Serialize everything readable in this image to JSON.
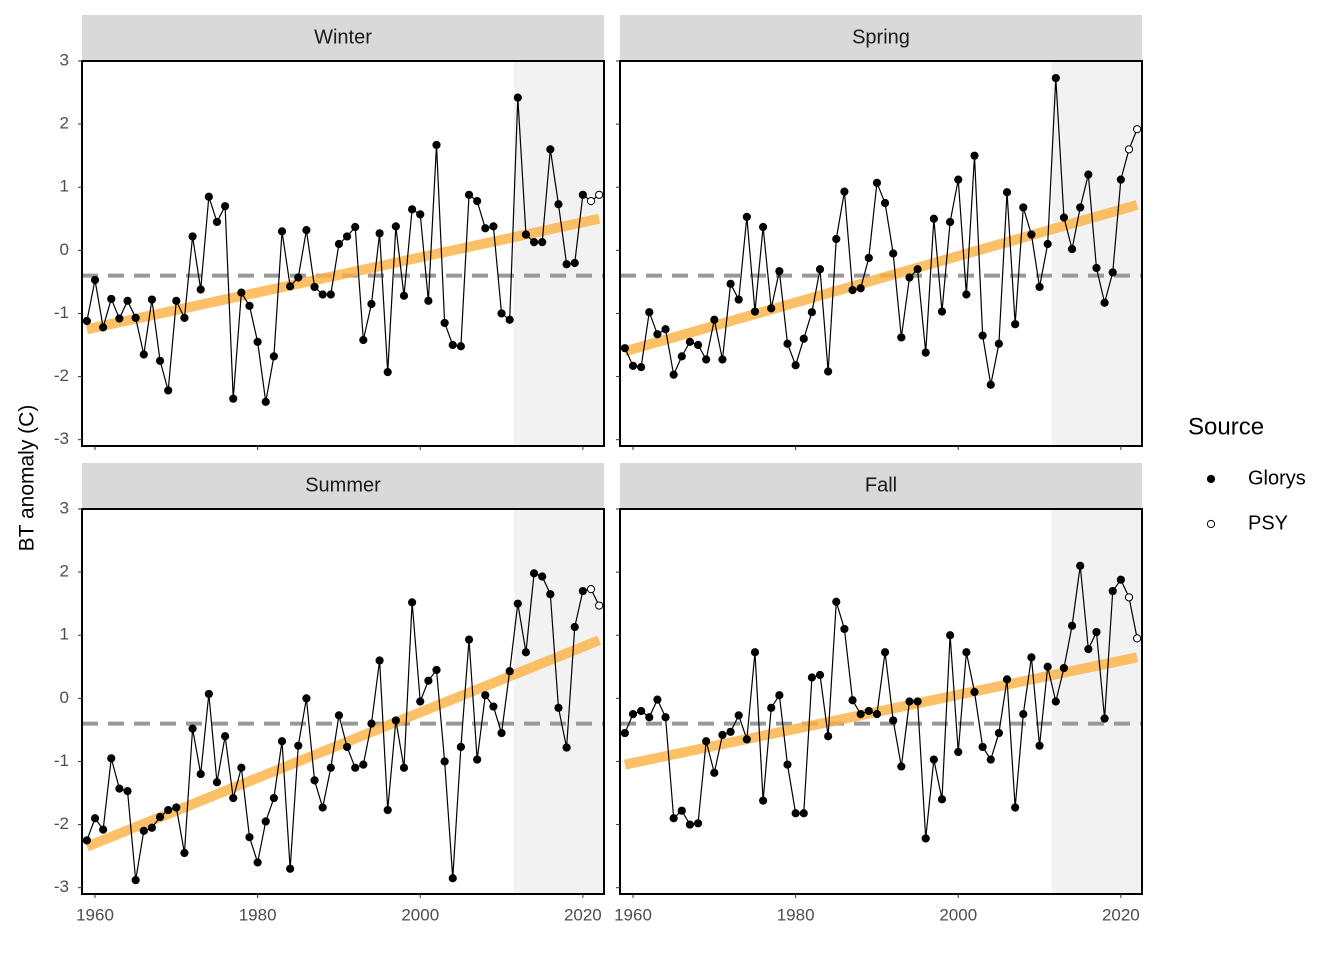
{
  "chart_data": [
    {
      "type": "line",
      "title": "Winter",
      "x": [
        1959,
        1960,
        1961,
        1962,
        1963,
        1964,
        1965,
        1966,
        1967,
        1968,
        1969,
        1970,
        1971,
        1972,
        1973,
        1974,
        1975,
        1976,
        1977,
        1978,
        1979,
        1980,
        1981,
        1982,
        1983,
        1984,
        1985,
        1986,
        1987,
        1988,
        1989,
        1990,
        1991,
        1992,
        1993,
        1994,
        1995,
        1996,
        1997,
        1998,
        1999,
        2000,
        2001,
        2002,
        2003,
        2004,
        2005,
        2006,
        2007,
        2008,
        2009,
        2010,
        2011,
        2012,
        2013,
        2014,
        2015,
        2016,
        2017,
        2018,
        2019,
        2020
      ],
      "series": [
        {
          "name": "Glorys",
          "color": "#000000",
          "values": [
            -1.12,
            -0.47,
            -1.22,
            -0.77,
            -1.08,
            -0.8,
            -1.07,
            -1.65,
            -0.78,
            -1.75,
            -2.22,
            -0.8,
            -1.07,
            0.22,
            -0.62,
            0.85,
            0.45,
            0.7,
            -2.35,
            -0.67,
            -0.88,
            -1.45,
            -2.4,
            -1.68,
            0.3,
            -0.57,
            -0.43,
            0.32,
            -0.58,
            -0.7,
            -0.7,
            0.1,
            0.22,
            0.37,
            -1.42,
            -0.85,
            0.27,
            -1.93,
            0.38,
            -0.72,
            0.65,
            0.57,
            -0.8,
            1.67,
            -1.15,
            -1.5,
            -1.52,
            0.88,
            0.78,
            0.35,
            0.38,
            -1.0,
            -1.1,
            2.42,
            0.25,
            0.13,
            0.13,
            1.6,
            0.73,
            -0.22,
            -0.2,
            0.88
          ]
        },
        {
          "name": "PSY",
          "color": "#ffffff",
          "x": [
            2021,
            2022
          ],
          "values": [
            0.78,
            0.88
          ]
        }
      ],
      "trend": {
        "x": [
          1959,
          2022
        ],
        "values": [
          -1.25,
          0.5
        ]
      }
    },
    {
      "type": "line",
      "title": "Spring",
      "x": [
        1959,
        1960,
        1961,
        1962,
        1963,
        1964,
        1965,
        1966,
        1967,
        1968,
        1969,
        1970,
        1971,
        1972,
        1973,
        1974,
        1975,
        1976,
        1977,
        1978,
        1979,
        1980,
        1981,
        1982,
        1983,
        1984,
        1985,
        1986,
        1987,
        1988,
        1989,
        1990,
        1991,
        1992,
        1993,
        1994,
        1995,
        1996,
        1997,
        1998,
        1999,
        2000,
        2001,
        2002,
        2003,
        2004,
        2005,
        2006,
        2007,
        2008,
        2009,
        2010,
        2011,
        2012,
        2013,
        2014,
        2015,
        2016,
        2017,
        2018,
        2019,
        2020
      ],
      "series": [
        {
          "name": "Glorys",
          "color": "#000000",
          "values": [
            -1.55,
            -1.83,
            -1.85,
            -0.98,
            -1.33,
            -1.25,
            -1.97,
            -1.68,
            -1.45,
            -1.5,
            -1.73,
            -1.1,
            -1.73,
            -0.53,
            -0.78,
            0.53,
            -0.97,
            0.37,
            -0.92,
            -0.33,
            -1.48,
            -1.82,
            -1.4,
            -0.98,
            -0.3,
            -1.92,
            0.18,
            0.93,
            -0.63,
            -0.6,
            -0.12,
            1.07,
            0.75,
            -0.05,
            -1.38,
            -0.43,
            -0.3,
            -1.62,
            0.5,
            -0.97,
            0.45,
            1.12,
            -0.7,
            1.5,
            -1.35,
            -2.13,
            -1.48,
            0.92,
            -1.17,
            0.68,
            0.25,
            -0.58,
            0.1,
            2.73,
            0.52,
            0.02,
            0.68,
            1.2,
            -0.28,
            -0.83,
            -0.35,
            1.12
          ]
        },
        {
          "name": "PSY",
          "color": "#ffffff",
          "x": [
            2021,
            2022
          ],
          "values": [
            1.6,
            1.92
          ]
        }
      ],
      "trend": {
        "x": [
          1959,
          2022
        ],
        "values": [
          -1.6,
          0.72
        ]
      }
    },
    {
      "type": "line",
      "title": "Summer",
      "x": [
        1959,
        1960,
        1961,
        1962,
        1963,
        1964,
        1965,
        1966,
        1967,
        1968,
        1969,
        1970,
        1971,
        1972,
        1973,
        1974,
        1975,
        1976,
        1977,
        1978,
        1979,
        1980,
        1981,
        1982,
        1983,
        1984,
        1985,
        1986,
        1987,
        1988,
        1989,
        1990,
        1991,
        1992,
        1993,
        1994,
        1995,
        1996,
        1997,
        1998,
        1999,
        2000,
        2001,
        2002,
        2003,
        2004,
        2005,
        2006,
        2007,
        2008,
        2009,
        2010,
        2011,
        2012,
        2013,
        2014,
        2015,
        2016,
        2017,
        2018,
        2019,
        2020
      ],
      "series": [
        {
          "name": "Glorys",
          "color": "#000000",
          "values": [
            -2.25,
            -1.9,
            -2.08,
            -0.95,
            -1.43,
            -1.47,
            -2.88,
            -2.1,
            -2.05,
            -1.88,
            -1.77,
            -1.73,
            -2.45,
            -0.48,
            -1.2,
            0.07,
            -1.33,
            -0.6,
            -1.58,
            -1.1,
            -2.2,
            -2.6,
            -1.95,
            -1.58,
            -0.68,
            -2.7,
            -0.75,
            0.0,
            -1.3,
            -1.73,
            -1.1,
            -0.27,
            -0.77,
            -1.1,
            -1.05,
            -0.4,
            0.6,
            -1.77,
            -0.35,
            -1.1,
            1.52,
            -0.05,
            0.28,
            0.45,
            -1.0,
            -2.85,
            -0.77,
            0.93,
            -0.97,
            0.05,
            -0.13,
            -0.55,
            0.43,
            1.5,
            0.73,
            1.98,
            1.93,
            1.65,
            -0.15,
            -0.78,
            1.13,
            1.7
          ]
        },
        {
          "name": "PSY",
          "color": "#ffffff",
          "x": [
            2021,
            2022
          ],
          "values": [
            1.73,
            1.47
          ]
        }
      ],
      "trend": {
        "x": [
          1959,
          2022
        ],
        "values": [
          -2.35,
          0.92
        ]
      }
    },
    {
      "type": "line",
      "title": "Fall",
      "x": [
        1959,
        1960,
        1961,
        1962,
        1963,
        1964,
        1965,
        1966,
        1967,
        1968,
        1969,
        1970,
        1971,
        1972,
        1973,
        1974,
        1975,
        1976,
        1977,
        1978,
        1979,
        1980,
        1981,
        1982,
        1983,
        1984,
        1985,
        1986,
        1987,
        1988,
        1989,
        1990,
        1991,
        1992,
        1993,
        1994,
        1995,
        1996,
        1997,
        1998,
        1999,
        2000,
        2001,
        2002,
        2003,
        2004,
        2005,
        2006,
        2007,
        2008,
        2009,
        2010,
        2011,
        2012,
        2013,
        2014,
        2015,
        2016,
        2017,
        2018,
        2019,
        2020
      ],
      "series": [
        {
          "name": "Glorys",
          "color": "#000000",
          "values": [
            -0.55,
            -0.25,
            -0.2,
            -0.3,
            -0.02,
            -0.3,
            -1.9,
            -1.78,
            -2.0,
            -1.98,
            -0.68,
            -1.18,
            -0.58,
            -0.53,
            -0.27,
            -0.65,
            0.73,
            -1.62,
            -0.15,
            0.05,
            -1.05,
            -1.82,
            -1.82,
            0.33,
            0.37,
            -0.6,
            1.53,
            1.1,
            -0.03,
            -0.25,
            -0.2,
            -0.25,
            0.73,
            -0.35,
            -1.08,
            -0.05,
            -0.05,
            -2.22,
            -0.97,
            -1.6,
            1.0,
            -0.85,
            0.73,
            0.1,
            -0.77,
            -0.97,
            -0.55,
            0.3,
            -1.73,
            -0.25,
            0.65,
            -0.75,
            0.5,
            -0.05,
            0.48,
            1.15,
            2.1,
            0.78,
            1.05,
            -0.32,
            1.7,
            1.88
          ]
        },
        {
          "name": "PSY",
          "color": "#ffffff",
          "x": [
            2021,
            2022
          ],
          "values": [
            1.6,
            0.95
          ]
        }
      ],
      "trend": {
        "x": [
          1959,
          2022
        ],
        "values": [
          -1.05,
          0.65
        ]
      }
    }
  ],
  "ylabel": "BT anomaly (C)",
  "xlim": [
    1958.4,
    2022.6
  ],
  "xticks": [
    1960,
    1980,
    2000,
    2020
  ],
  "ylim": [
    -3.1,
    3.0
  ],
  "yticks": [
    -3,
    -2,
    -1,
    0,
    1,
    2,
    3
  ],
  "reference_y": -0.4,
  "highlight_xlim": [
    2011.5,
    2022.6
  ],
  "trend_color": "#fbb040",
  "legend": {
    "title": "Source",
    "position": "right"
  }
}
